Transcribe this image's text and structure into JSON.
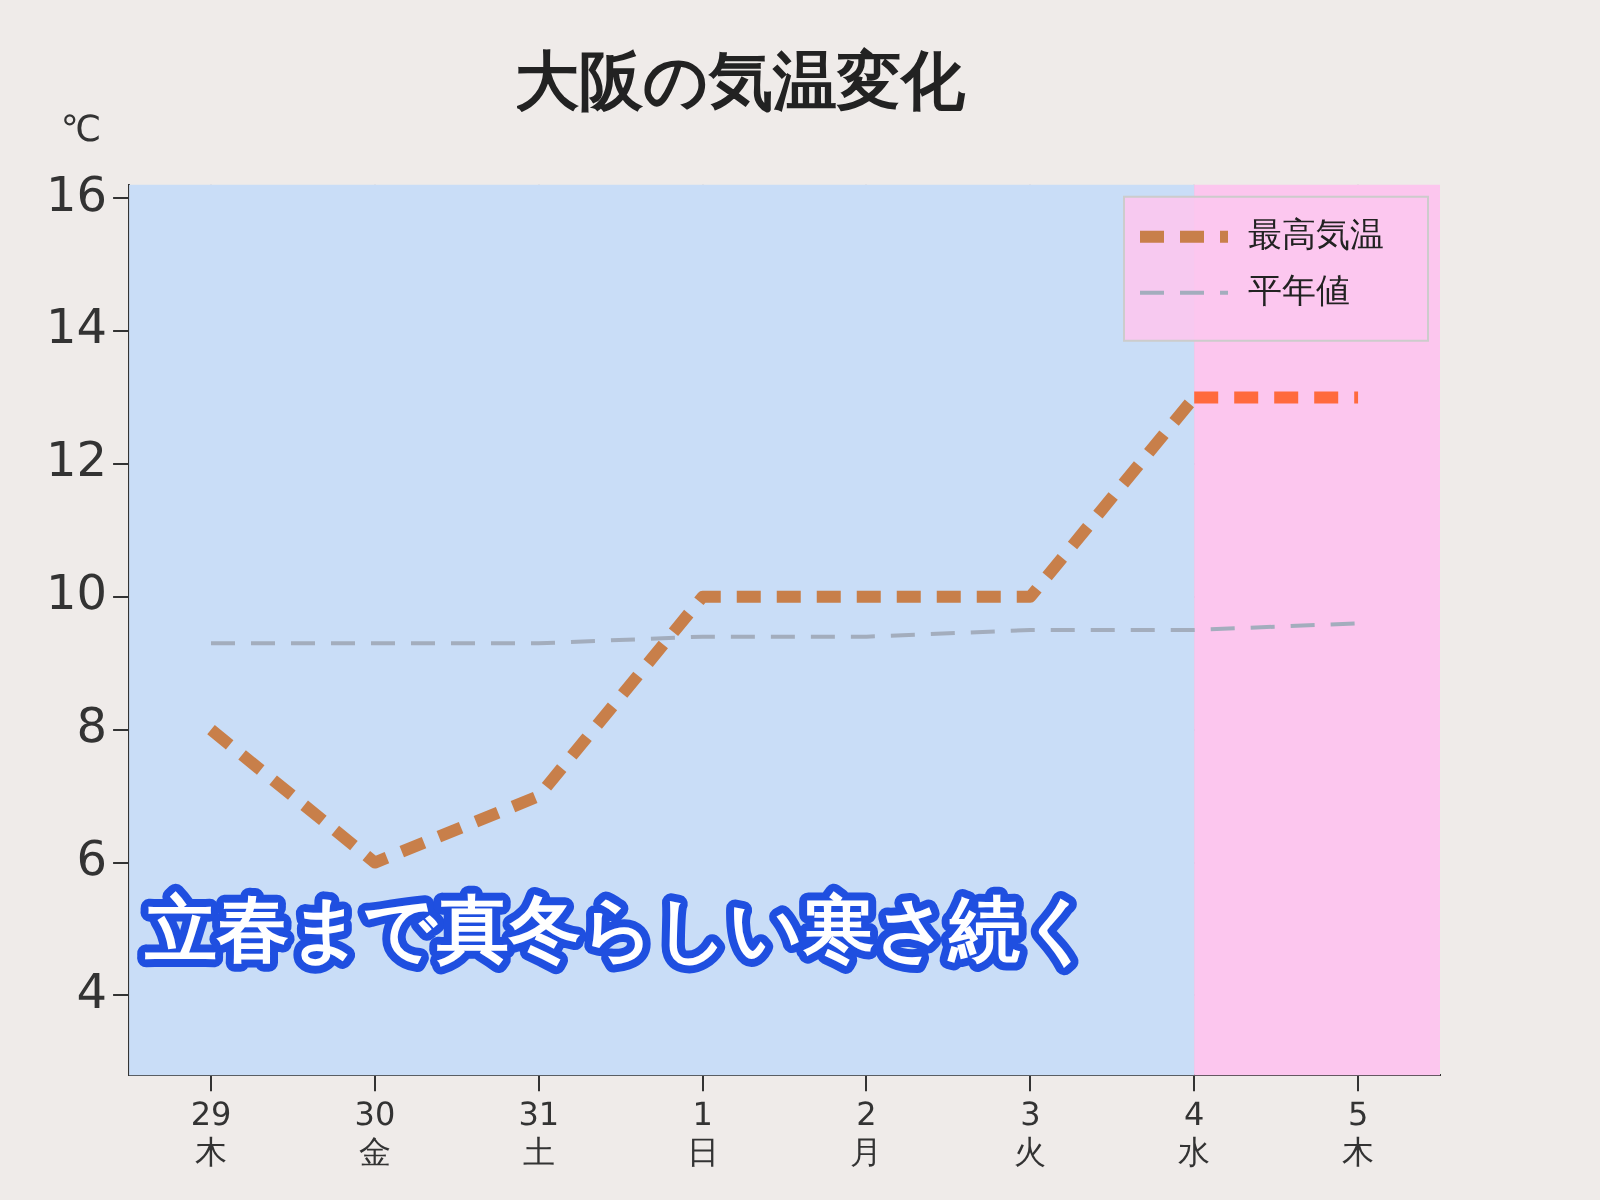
{
  "chart_data": {
    "type": "line",
    "title": "大阪の気温変化",
    "ylabel": "℃",
    "categories": [
      "29\n木",
      "30\n金",
      "31\n土",
      "1\n日",
      "2\n月",
      "3\n火",
      "4\n水",
      "5\n木"
    ],
    "series": [
      {
        "name": "最高気温",
        "color": "#c87f4a",
        "values": [
          8,
          6,
          7,
          10,
          10,
          10,
          13,
          null
        ],
        "line_style": "dashed"
      },
      {
        "color": "#ff6a3d",
        "values": [
          null,
          null,
          null,
          null,
          null,
          null,
          13,
          13
        ],
        "line_style": "dashed"
      },
      {
        "name": "平年値",
        "color": "#a3adbd",
        "values": [
          9.3,
          9.3,
          9.3,
          9.4,
          9.4,
          9.5,
          9.5,
          9.6
        ],
        "line_style": "dashed"
      }
    ],
    "ylim": [
      2.8,
      16.2
    ],
    "yticks": [
      4,
      6,
      8,
      10,
      12,
      14,
      16
    ],
    "grid": true,
    "legend": "top right",
    "marker": "none",
    "bands": [
      {
        "axis": "x",
        "from": "29\n木",
        "to": "4\n水",
        "color": "#c9ddf7"
      },
      {
        "axis": "x",
        "from": "4\n水",
        "to": "5\n木",
        "color": "#fcc6ee"
      }
    ],
    "annotations": [
      "立春まで真冬らしい寒さ続く"
    ]
  }
}
